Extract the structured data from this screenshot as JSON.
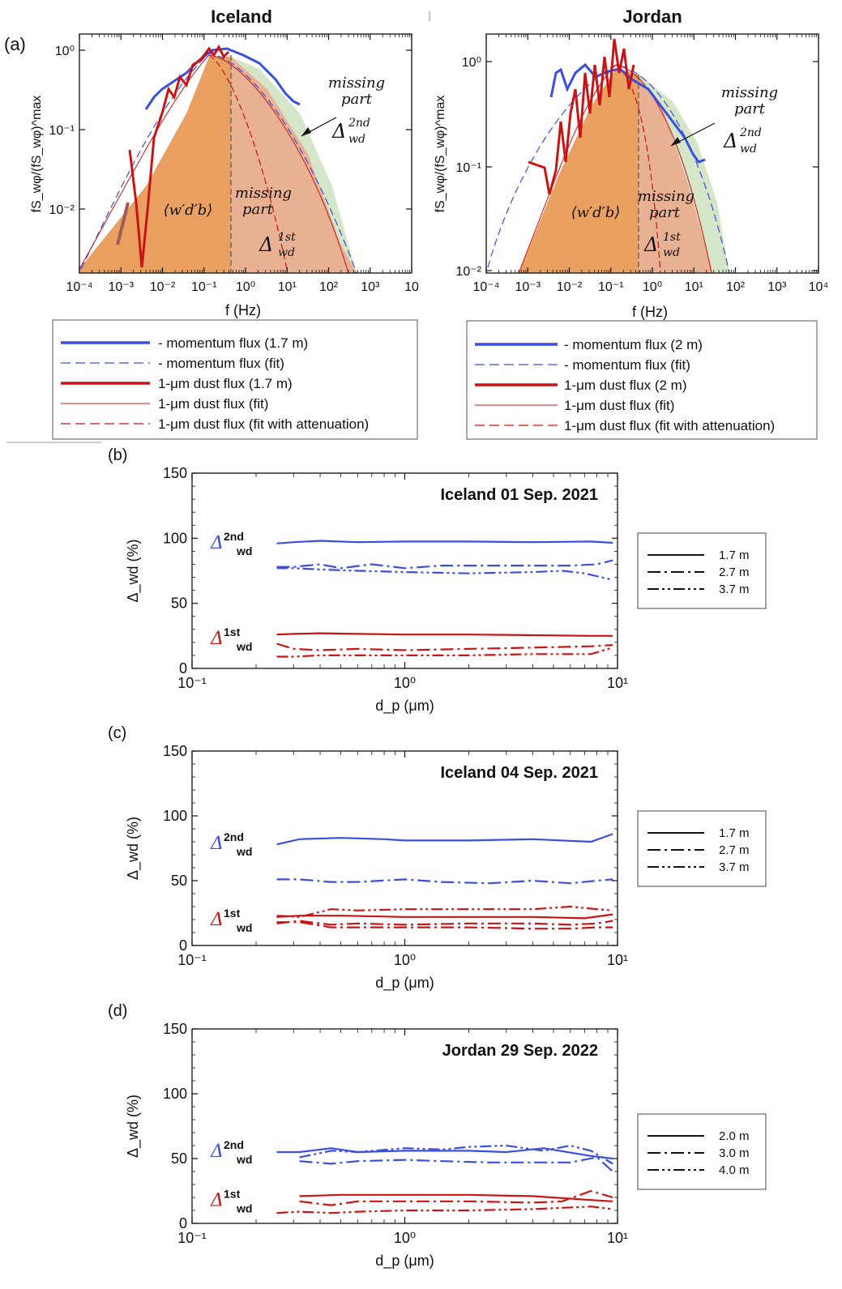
{
  "panel_labels": {
    "a": "(a)",
    "b": "(b)",
    "c": "(c)",
    "d": "(d)"
  },
  "colors": {
    "blue": "#3a4ee0",
    "red": "#c81414",
    "orange_fill": "#e9a060",
    "green_fill": "#d5e6c8",
    "salmon_fill": "#e7ad8e"
  },
  "panel_a": {
    "iceland": {
      "title": "Iceland",
      "ylabel": "fS_wφ/(fS_wφ)^max",
      "xlabel": "f (Hz)",
      "xticks": [
        "10⁻⁴",
        "10⁻³",
        "10⁻²",
        "10⁻¹",
        "10⁰",
        "10¹",
        "10²",
        "10³",
        "10"
      ],
      "yticks": [
        "10⁰",
        "10⁻¹",
        "10⁻²"
      ],
      "missing_upper": [
        "missing",
        "part"
      ],
      "missing_lower": [
        "missing",
        "part"
      ],
      "delta_2nd": "Δ",
      "delta_2nd_sup": "2nd",
      "delta_2nd_sub": "wd",
      "delta_1st": "Δ",
      "delta_1st_sup": "1st",
      "delta_1st_sub": "wd",
      "flux_label": "⟨w′d′b⟩",
      "legend": [
        "- momentum flux (1.7 m)",
        "- momentum flux (fit)",
        "1-μm dust flux (1.7 m)",
        "1-μm dust flux (fit)",
        "1-μm dust flux (fit with attenuation)"
      ]
    },
    "jordan": {
      "title": "Jordan",
      "ylabel": "fS_wφ/(fS_wφ)^max",
      "xlabel": "f (Hz)",
      "xticks": [
        "10⁻⁴",
        "10⁻³",
        "10⁻²",
        "10⁻¹",
        "10⁰",
        "10¹",
        "10²",
        "10³",
        "10⁴"
      ],
      "yticks": [
        "10⁰",
        "10⁻¹",
        "10⁻²"
      ],
      "missing_upper": [
        "missing",
        "part"
      ],
      "missing_lower": [
        "missing",
        "part"
      ],
      "delta_2nd": "Δ",
      "delta_2nd_sup": "2nd",
      "delta_2nd_sub": "wd",
      "delta_1st": "Δ",
      "delta_1st_sup": "1st",
      "delta_1st_sub": "wd",
      "flux_label": "⟨w′d′b⟩",
      "legend": [
        "- momentum flux (2 m)",
        "- momentum flux (fit)",
        "1-μm dust flux (2 m)",
        "1-μm dust flux (fit)",
        "1-μm dust flux (fit with attenuation)"
      ]
    }
  },
  "chart_data": [
    {
      "type": "line",
      "panel": "b",
      "title": "Iceland 01 Sep. 2021",
      "xlabel": "d_p (μm)",
      "ylabel": "Δ_wd (%)",
      "xscale": "log",
      "xlim": [
        0.1,
        10
      ],
      "ylim": [
        0,
        150
      ],
      "xticks": [
        "10⁻¹",
        "10⁰",
        "10¹"
      ],
      "yticks": [
        "0",
        "50",
        "100",
        "150"
      ],
      "legend": [
        "1.7 m",
        "2.7 m",
        "3.7 m"
      ],
      "group_labels": {
        "second": "2nd",
        "first": "1st",
        "sub": "wd",
        "delta": "Δ"
      },
      "series": [
        {
          "name": "1.7 m",
          "group": "2nd",
          "style": "solid",
          "x": [
            0.25,
            0.3,
            0.4,
            0.6,
            1.0,
            2.0,
            4.0,
            7.5,
            9.5
          ],
          "values": [
            96,
            97,
            98,
            97,
            97.5,
            97.5,
            97,
            97.5,
            96.5
          ]
        },
        {
          "name": "2.7 m",
          "group": "2nd",
          "style": "dashdot",
          "x": [
            0.25,
            0.3,
            0.4,
            0.5,
            0.7,
            1.0,
            1.5,
            2.5,
            4.0,
            6.0,
            8.0,
            9.5
          ],
          "values": [
            78,
            78,
            80,
            77,
            80,
            77,
            79,
            79,
            79,
            79,
            80,
            83
          ]
        },
        {
          "name": "3.7 m",
          "group": "2nd",
          "style": "dashdotdot",
          "x": [
            0.25,
            0.3,
            0.4,
            0.6,
            1.0,
            2.0,
            4.0,
            5.5,
            7.0,
            9.5
          ],
          "values": [
            77,
            77,
            76,
            75,
            74,
            73,
            74,
            75,
            73,
            68
          ]
        },
        {
          "name": "1.7 m",
          "group": "1st",
          "style": "solid",
          "x": [
            0.25,
            0.3,
            0.4,
            0.6,
            1.0,
            2.0,
            4.0,
            7.5,
            9.5
          ],
          "values": [
            26,
            26.5,
            27,
            26.5,
            26,
            26,
            25.5,
            25,
            25
          ]
        },
        {
          "name": "2.7 m",
          "group": "1st",
          "style": "dashdot",
          "x": [
            0.25,
            0.3,
            0.4,
            0.6,
            1.0,
            2.0,
            4.0,
            7.5,
            9.5
          ],
          "values": [
            19,
            15,
            14,
            15,
            14,
            15,
            16,
            17,
            18
          ]
        },
        {
          "name": "3.7 m",
          "group": "1st",
          "style": "dashdotdot",
          "x": [
            0.25,
            0.3,
            0.4,
            0.6,
            1.0,
            2.0,
            4.0,
            7.5,
            9.5
          ],
          "values": [
            9,
            9,
            10,
            10,
            10,
            10,
            11,
            11,
            16
          ]
        }
      ]
    },
    {
      "type": "line",
      "panel": "c",
      "title": "Iceland 04 Sep. 2021",
      "xlabel": "d_p (μm)",
      "ylabel": "Δ_wd (%)",
      "xscale": "log",
      "xlim": [
        0.1,
        10
      ],
      "ylim": [
        0,
        150
      ],
      "xticks": [
        "10⁻¹",
        "10⁰",
        "10¹"
      ],
      "yticks": [
        "0",
        "50",
        "100",
        "150"
      ],
      "legend": [
        "1.7 m",
        "2.7 m",
        "3.7 m"
      ],
      "group_labels": {
        "second": "2nd",
        "first": "1st",
        "sub": "wd",
        "delta": "Δ"
      },
      "series": [
        {
          "name": "1.7 m",
          "group": "2nd",
          "style": "solid",
          "x": [
            0.25,
            0.32,
            0.5,
            0.8,
            1.0,
            2.0,
            4.0,
            7.5,
            9.5
          ],
          "values": [
            78,
            82,
            83,
            82,
            81,
            81,
            82,
            80,
            86
          ]
        },
        {
          "name": "2.7 m",
          "group": "2nd",
          "style": "dashdot",
          "x": [
            0.25,
            0.32,
            0.45,
            0.6,
            1.0,
            1.5,
            2.5,
            4.0,
            6.0,
            8.0,
            9.5
          ],
          "values": [
            51,
            51,
            49,
            49,
            51,
            49,
            48,
            50,
            48,
            50,
            51
          ]
        },
        {
          "name": "3.7 m",
          "group": "1st",
          "style": "dashdotdot",
          "x": [
            0.25,
            0.32,
            0.45,
            0.6,
            1.0,
            2.0,
            4.0,
            6.0,
            8.0,
            9.5
          ],
          "values": [
            23,
            22,
            28,
            27,
            28,
            28,
            28,
            30,
            28,
            27
          ]
        },
        {
          "name": "1.7 m",
          "group": "1st",
          "style": "solid",
          "x": [
            0.25,
            0.32,
            0.5,
            1.0,
            2.0,
            4.0,
            7.0,
            9.5
          ],
          "values": [
            22,
            23,
            23,
            22,
            22,
            22,
            21,
            24
          ]
        },
        {
          "name": "2.7 m",
          "group": "1st",
          "style": "dashdot",
          "x": [
            0.25,
            0.32,
            0.45,
            0.6,
            1.0,
            2.0,
            4.0,
            6.0,
            8.0,
            9.5
          ],
          "values": [
            17,
            19,
            16,
            17,
            16,
            17,
            17,
            16,
            17,
            19
          ]
        },
        {
          "name": "3.7 m",
          "group": "1st",
          "style": "dashdot2",
          "x": [
            0.25,
            0.32,
            0.45,
            0.6,
            1.0,
            2.0,
            4.0,
            6.0,
            8.0,
            9.5
          ],
          "values": [
            18,
            18,
            14,
            14,
            14,
            14,
            13,
            13,
            14,
            14
          ]
        }
      ]
    },
    {
      "type": "line",
      "panel": "d",
      "title": "Jordan 29 Sep. 2022",
      "xlabel": "d_p (μm)",
      "ylabel": "Δ_wd (%)",
      "xscale": "log",
      "xlim": [
        0.1,
        10
      ],
      "ylim": [
        0,
        150
      ],
      "xticks": [
        "10⁻¹",
        "10⁰",
        "10¹"
      ],
      "yticks": [
        "0",
        "50",
        "100",
        "150"
      ],
      "legend": [
        "2.0 m",
        "3.0 m",
        "4.0 m"
      ],
      "group_labels": {
        "second": "2nd",
        "first": "1st",
        "sub": "wd",
        "delta": "Δ"
      },
      "series": [
        {
          "name": "2.0 m",
          "group": "2nd",
          "style": "solid",
          "x": [
            0.25,
            0.32,
            0.45,
            0.6,
            1.0,
            2.0,
            3.0,
            4.5,
            7.5,
            9.5
          ],
          "values": [
            55,
            55,
            58,
            55,
            56,
            56,
            55,
            58,
            52,
            50
          ]
        },
        {
          "name": "3.0 m",
          "group": "2nd",
          "style": "dashdot",
          "x": [
            0.32,
            0.45,
            0.6,
            1.0,
            1.5,
            2.5,
            4.0,
            6.0,
            8.0,
            9.5
          ],
          "values": [
            48,
            46,
            48,
            49,
            48,
            47,
            47,
            47,
            51,
            40
          ]
        },
        {
          "name": "4.0 m",
          "group": "2nd",
          "style": "dashdotdot",
          "x": [
            0.32,
            0.45,
            0.6,
            1.0,
            1.5,
            2.0,
            3.0,
            4.5,
            6.0,
            7.5,
            9.5
          ],
          "values": [
            51,
            56,
            55,
            58,
            57,
            59,
            60,
            56,
            60,
            56,
            46
          ]
        },
        {
          "name": "2.0 m",
          "group": "1st",
          "style": "solid",
          "x": [
            0.32,
            0.5,
            1.0,
            2.0,
            4.0,
            7.5,
            9.5
          ],
          "values": [
            21,
            22,
            22,
            22,
            21,
            18,
            17
          ]
        },
        {
          "name": "3.0 m",
          "group": "1st",
          "style": "dashdot",
          "x": [
            0.32,
            0.45,
            0.6,
            1.0,
            2.0,
            4.0,
            5.5,
            7.5,
            9.5
          ],
          "values": [
            17,
            14,
            17,
            17,
            17,
            16,
            17,
            25,
            20
          ]
        },
        {
          "name": "4.0 m",
          "group": "1st",
          "style": "dashdotdot",
          "x": [
            0.25,
            0.32,
            0.45,
            0.6,
            1.0,
            2.0,
            4.0,
            7.5,
            9.5
          ],
          "values": [
            8,
            9,
            8,
            9,
            10,
            10,
            11,
            13,
            11
          ]
        }
      ]
    }
  ]
}
